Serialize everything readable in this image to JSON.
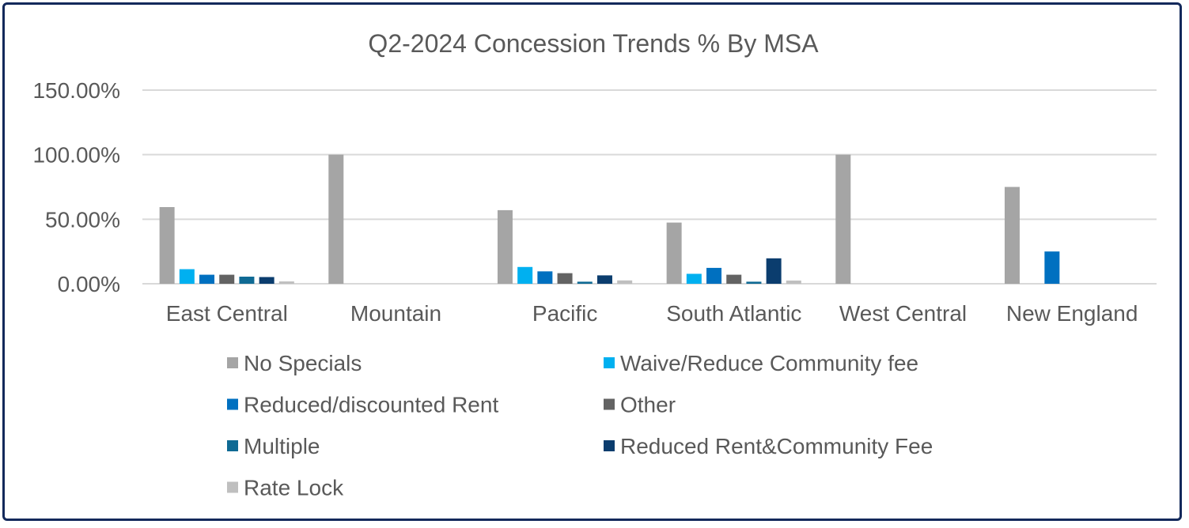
{
  "chart_data": {
    "type": "bar",
    "title": "Q2-2024 Concession Trends % By MSA",
    "xlabel": "",
    "ylabel": "",
    "ylim": [
      0,
      150
    ],
    "yticks": [
      "0.00%",
      "50.00%",
      "100.00%",
      "150.00%"
    ],
    "ytick_values": [
      0,
      50,
      100,
      150
    ],
    "grid": true,
    "legend_position": "bottom",
    "categories": [
      "East Central",
      "Mountain",
      "Pacific",
      "South Atlantic",
      "West Central",
      "New England"
    ],
    "series": [
      {
        "name": "No Specials",
        "color": "#a5a5a5",
        "values": [
          59.4,
          100,
          57,
          47.4,
          100,
          75
        ]
      },
      {
        "name": "Waive/Reduce Community fee",
        "color": "#00b0f0",
        "values": [
          11.3,
          0,
          13,
          7.7,
          0,
          0
        ]
      },
      {
        "name": "Reduced/discounted Rent",
        "color": "#0070c0",
        "values": [
          7,
          0,
          9.6,
          12.3,
          0,
          25
        ]
      },
      {
        "name": "Other",
        "color": "#636363",
        "values": [
          7,
          0,
          8.2,
          7,
          0,
          0
        ]
      },
      {
        "name": "Multiple",
        "color": "#0f6a94",
        "values": [
          5.5,
          0,
          1.6,
          1.6,
          0,
          0
        ]
      },
      {
        "name": "Reduced Rent&Community Fee",
        "color": "#0b3d6e",
        "values": [
          5.2,
          0,
          6.5,
          19.7,
          0,
          0
        ]
      },
      {
        "name": "Rate Lock",
        "color": "#bfbfbf",
        "values": [
          1.8,
          0,
          2.6,
          2.5,
          0,
          0
        ]
      }
    ]
  }
}
